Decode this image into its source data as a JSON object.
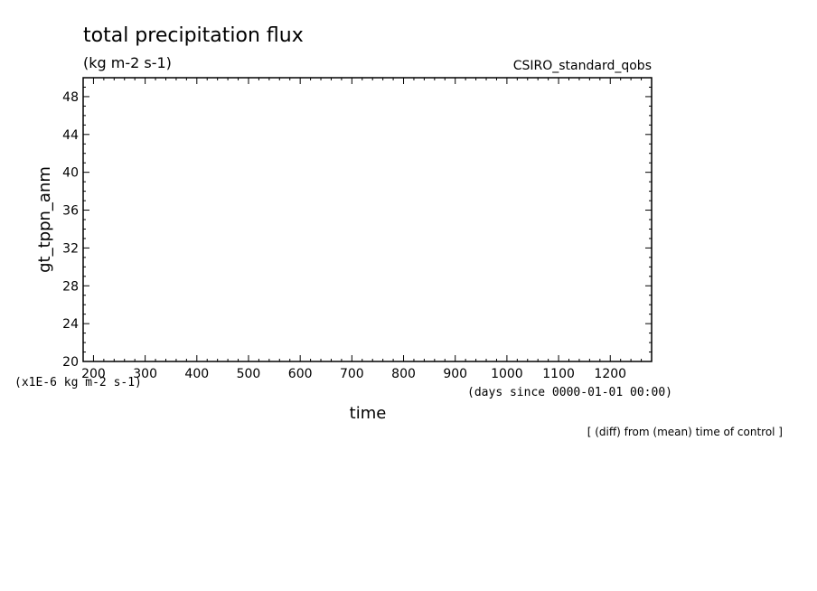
{
  "chart_data": {
    "type": "line",
    "title": "total precipitation flux",
    "units": "(kg m-2 s-1)",
    "dataset": "CSIRO_standard_qobs",
    "ylabel": "gt_tppn_anm",
    "xlabel": "time",
    "x_units": "(days since 0000-01-01 00:00)",
    "y_scale_note": "(x1E-6 kg m-2 s-1)",
    "footnote": "[ (diff) from (mean) time of control ]",
    "xlim": [
      180,
      1280
    ],
    "ylim": [
      20,
      50
    ],
    "x_ticks": [
      200,
      300,
      400,
      500,
      600,
      700,
      800,
      900,
      1000,
      1100,
      1200
    ],
    "y_ticks": [
      20,
      24,
      28,
      32,
      36,
      40,
      44,
      48
    ],
    "grid": false,
    "series": [
      {
        "name": "",
        "x_start": 180,
        "x_step": 3,
        "values": []
      }
    ]
  }
}
